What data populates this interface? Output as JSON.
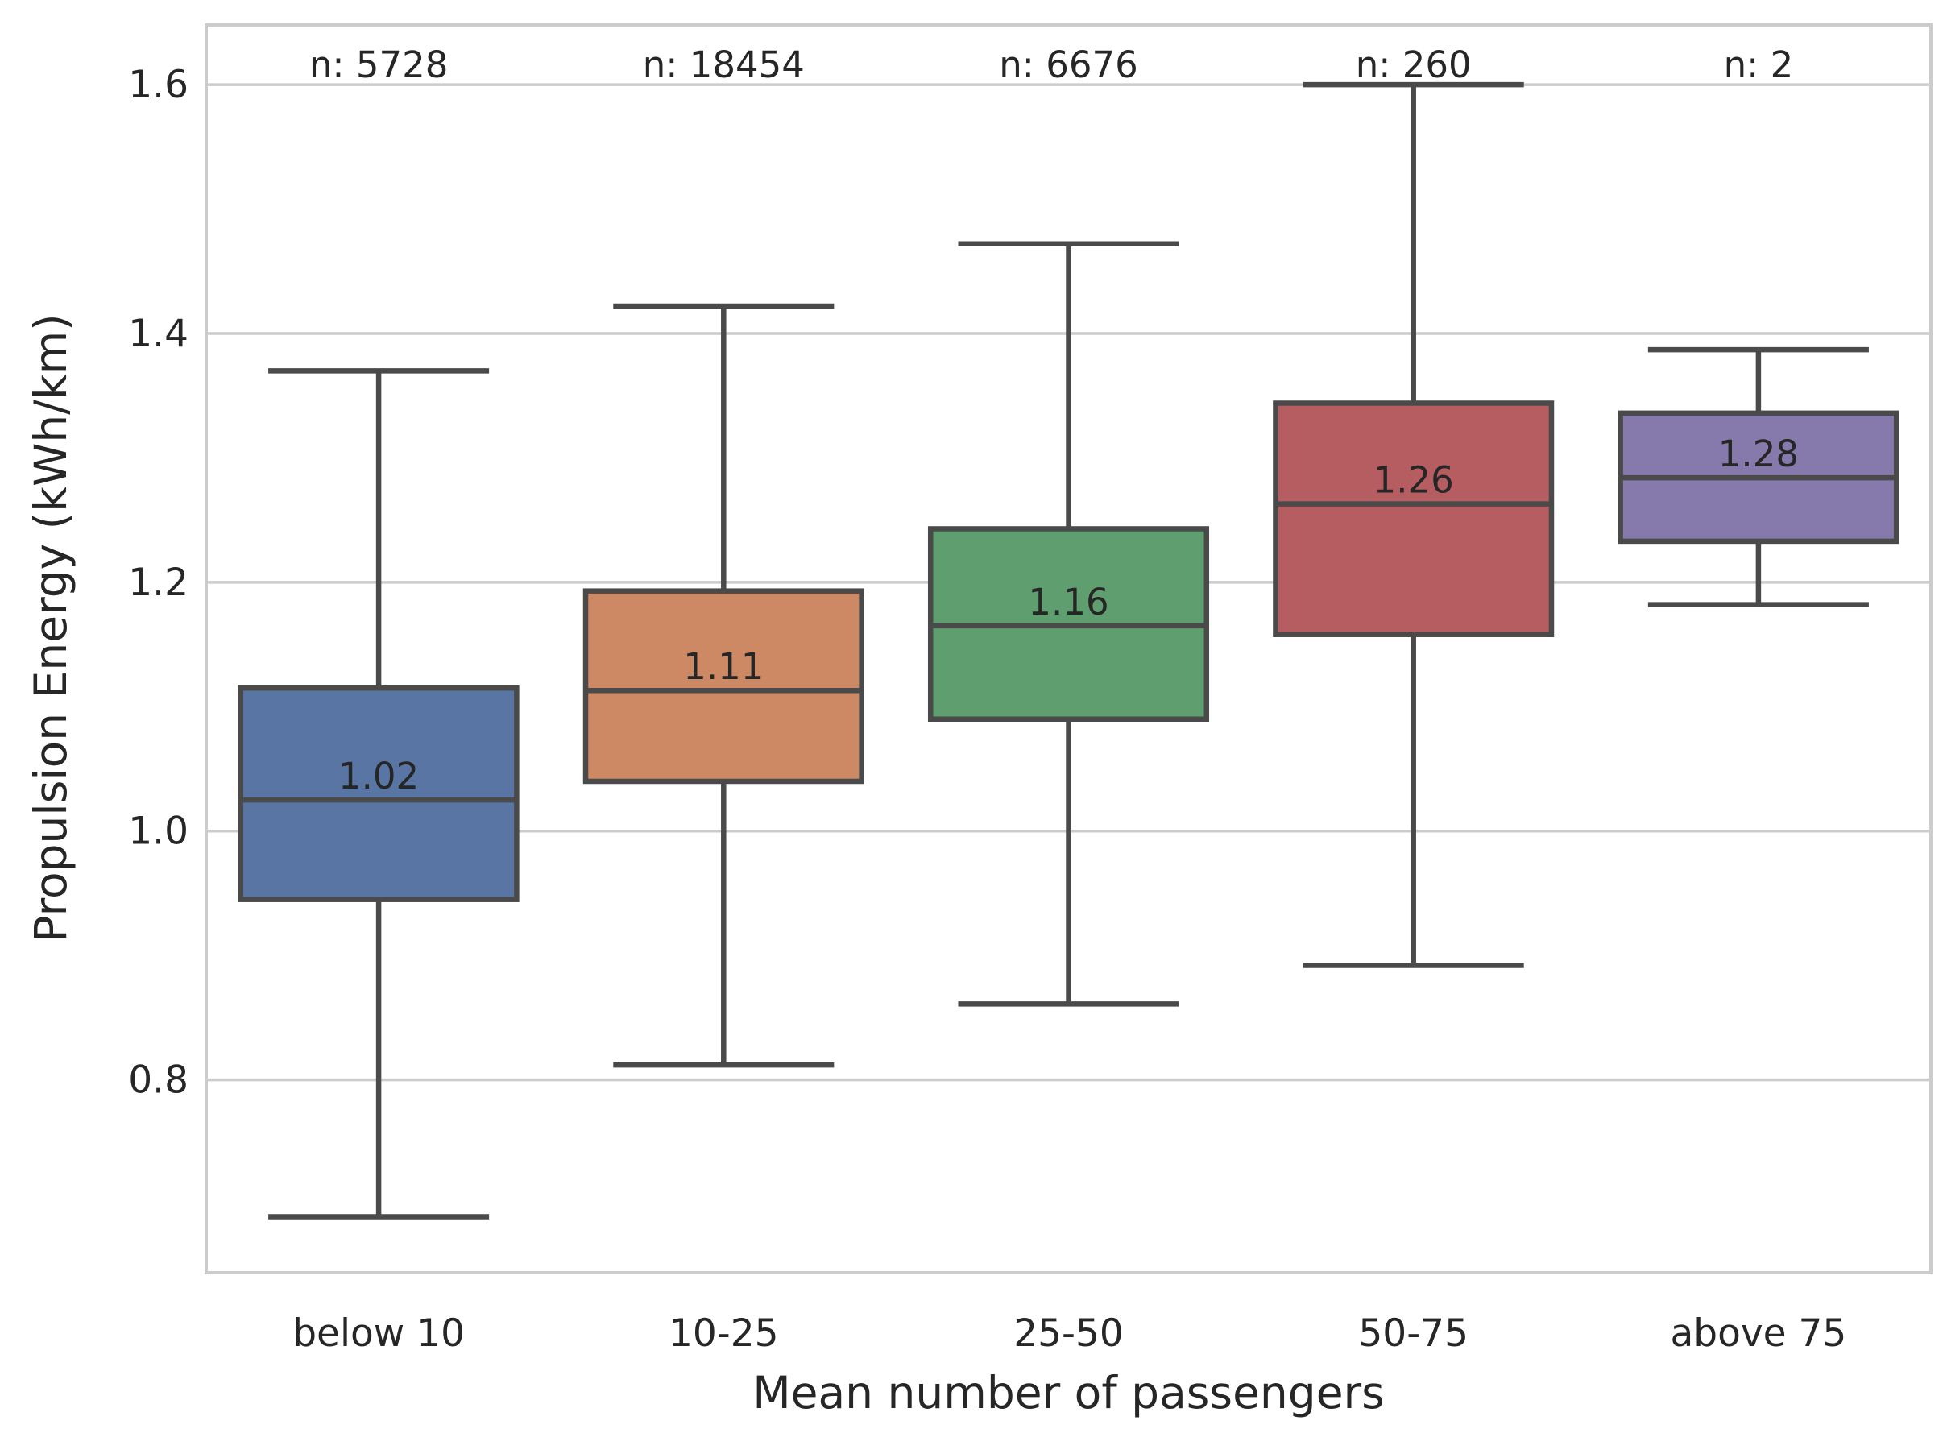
{
  "chart_data": {
    "type": "box",
    "title": "",
    "xlabel": "Mean number of passengers",
    "ylabel": "Propulsion Energy (kWh/km)",
    "ylim": [
      0.645,
      1.648
    ],
    "yticks": [
      0.8,
      1.0,
      1.2,
      1.4,
      1.6
    ],
    "ytick_labels": [
      "0.8",
      "1.0",
      "1.2",
      "1.4",
      "1.6"
    ],
    "grid": true,
    "legend": "none",
    "categories": [
      "below 10",
      "10-25",
      "25-50",
      "50-75",
      "above 75"
    ],
    "boxes": [
      {
        "category": "below 10",
        "whisker_low": 0.69,
        "q1": 0.945,
        "median": 1.025,
        "q3": 1.115,
        "whisker_high": 1.37,
        "median_label": "1.02",
        "n_label": "n: 5728",
        "color": "#5875a4"
      },
      {
        "category": "10-25",
        "whisker_low": 0.812,
        "q1": 1.04,
        "median": 1.113,
        "q3": 1.193,
        "whisker_high": 1.422,
        "median_label": "1.11",
        "n_label": "n: 18454",
        "color": "#cc8963"
      },
      {
        "category": "25-50",
        "whisker_low": 0.861,
        "q1": 1.09,
        "median": 1.165,
        "q3": 1.243,
        "whisker_high": 1.472,
        "median_label": "1.16",
        "n_label": "n: 6676",
        "color": "#5f9e6e"
      },
      {
        "category": "50-75",
        "whisker_low": 0.892,
        "q1": 1.158,
        "median": 1.263,
        "q3": 1.344,
        "whisker_high": 1.6,
        "median_label": "1.26",
        "n_label": "n: 260",
        "color": "#b55d60"
      },
      {
        "category": "above 75",
        "whisker_low": 1.182,
        "q1": 1.233,
        "median": 1.284,
        "q3": 1.336,
        "whisker_high": 1.387,
        "median_label": "1.28",
        "n_label": "n: 2",
        "color": "#857aab"
      }
    ]
  }
}
